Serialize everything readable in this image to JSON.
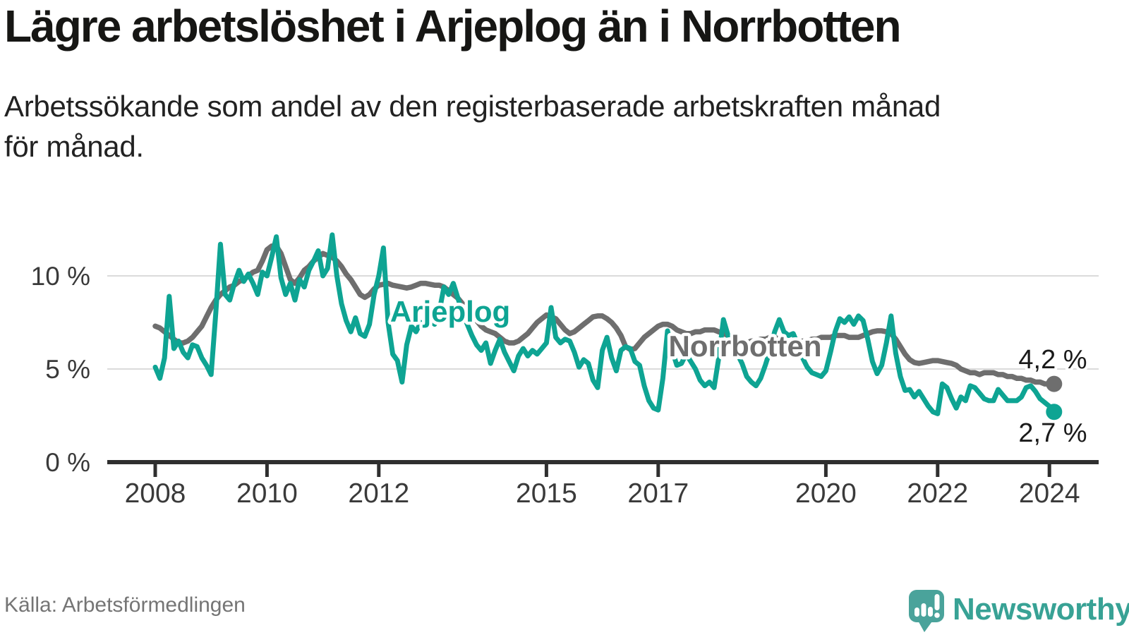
{
  "header": {
    "title": "Lägre arbetslöshet i Arjeplog än i Norrbotten",
    "subtitle_line1": "Arbetssökande som andel av den registerbaserade arbetskraften månad",
    "subtitle_line2": "för månad."
  },
  "chart": {
    "y_ticks": [
      {
        "label": "10 %",
        "value": 10
      },
      {
        "label": "5 %",
        "value": 5
      },
      {
        "label": "0 %",
        "value": 0
      }
    ],
    "x_ticks": [
      {
        "label": "2008",
        "year": 2008
      },
      {
        "label": "2010",
        "year": 2010
      },
      {
        "label": "2012",
        "year": 2012
      },
      {
        "label": "2015",
        "year": 2015
      },
      {
        "label": "2017",
        "year": 2017
      },
      {
        "label": "2020",
        "year": 2020
      },
      {
        "label": "2022",
        "year": 2022
      },
      {
        "label": "2024",
        "year": 2024
      }
    ],
    "series_labels": {
      "arjeplog": "Arjeplog",
      "norrbotten": "Norrbotten"
    },
    "end_labels": {
      "norrbotten": "4,2 %",
      "arjeplog": "2,7 %"
    },
    "colors": {
      "arjeplog": "#0EA493",
      "norrbotten": "#6E6E6E",
      "gridline": "#DBDBDB",
      "axis": "#2F2F2F",
      "tick_text": "#3A3A3A",
      "end_label_text": "#1A1A1A"
    }
  },
  "chart_data": {
    "type": "line",
    "title": "Lägre arbetslöshet i Arjeplog än i Norrbotten",
    "subtitle": "Arbetssökande som andel av den registerbaserade arbetskraften månad för månad.",
    "unit": "%",
    "frequency": "monthly",
    "x_start": "2008-01",
    "x_end": "2024-02",
    "xlim": [
      2007.1,
      2024.9
    ],
    "ylim": [
      0,
      12.7
    ],
    "grid": "horizontal",
    "legend_position": "inline-labels",
    "x_tick_years": [
      2008,
      2010,
      2012,
      2015,
      2017,
      2020,
      2022,
      2024
    ],
    "y_tick_values": [
      0,
      5,
      10
    ],
    "series": [
      {
        "name": "Norrbotten",
        "color": "#6E6E6E",
        "last_value_label": "4,2 %",
        "values": [
          7.3,
          7.2,
          7.0,
          6.8,
          6.6,
          6.4,
          6.4,
          6.5,
          6.7,
          7.0,
          7.3,
          7.8,
          8.3,
          8.7,
          9.0,
          9.2,
          9.4,
          9.5,
          9.7,
          9.8,
          10.0,
          10.2,
          10.3,
          10.8,
          11.4,
          11.6,
          11.6,
          11.2,
          10.5,
          9.8,
          9.6,
          9.9,
          10.3,
          10.5,
          10.8,
          11.0,
          11.2,
          11.1,
          11.0,
          10.8,
          10.5,
          10.1,
          9.8,
          9.4,
          9.0,
          8.85,
          9.0,
          9.3,
          9.5,
          9.55,
          9.6,
          9.5,
          9.45,
          9.4,
          9.35,
          9.4,
          9.5,
          9.6,
          9.6,
          9.55,
          9.5,
          9.5,
          9.4,
          9.2,
          9.0,
          8.8,
          8.5,
          8.2,
          7.9,
          7.6,
          7.3,
          7.1,
          7.0,
          6.9,
          6.7,
          6.5,
          6.4,
          6.4,
          6.5,
          6.7,
          6.9,
          7.2,
          7.5,
          7.7,
          7.9,
          7.8,
          7.7,
          7.4,
          7.1,
          6.9,
          7.0,
          7.2,
          7.4,
          7.6,
          7.8,
          7.85,
          7.85,
          7.7,
          7.5,
          7.2,
          6.8,
          6.2,
          6.05,
          6.1,
          6.4,
          6.7,
          6.9,
          7.1,
          7.3,
          7.4,
          7.4,
          7.3,
          7.1,
          7.0,
          6.9,
          6.9,
          7.0,
          7.0,
          7.1,
          7.1,
          7.1,
          7.0,
          6.9,
          6.8,
          6.6,
          6.5,
          6.4,
          6.4,
          6.5,
          6.5,
          6.6,
          6.6,
          6.7,
          6.7,
          6.6,
          6.5,
          6.4,
          6.4,
          6.4,
          6.5,
          6.5,
          6.6,
          6.6,
          6.7,
          6.7,
          6.7,
          6.8,
          6.8,
          6.8,
          6.7,
          6.7,
          6.7,
          6.8,
          6.9,
          7.0,
          7.05,
          7.05,
          7.0,
          6.9,
          6.6,
          6.2,
          5.8,
          5.5,
          5.35,
          5.3,
          5.35,
          5.4,
          5.45,
          5.45,
          5.4,
          5.35,
          5.3,
          5.2,
          5.0,
          4.9,
          4.8,
          4.8,
          4.7,
          4.8,
          4.8,
          4.8,
          4.7,
          4.7,
          4.6,
          4.6,
          4.5,
          4.5,
          4.4,
          4.4,
          4.3,
          4.3,
          4.2,
          4.2,
          4.2
        ]
      },
      {
        "name": "Arjeplog",
        "color": "#0EA493",
        "last_value_label": "2,7 %",
        "values": [
          5.1,
          4.5,
          5.6,
          8.9,
          6.1,
          6.5,
          5.9,
          5.6,
          6.3,
          6.2,
          5.6,
          5.2,
          4.7,
          8.0,
          11.7,
          9.0,
          8.7,
          9.6,
          10.3,
          9.7,
          10.1,
          9.6,
          9.0,
          10.2,
          10.0,
          11.0,
          12.1,
          9.9,
          9.0,
          9.6,
          8.7,
          9.8,
          9.4,
          10.3,
          10.8,
          11.35,
          10.0,
          10.4,
          12.2,
          10.0,
          8.5,
          7.6,
          7.0,
          7.75,
          6.9,
          6.75,
          7.4,
          9.0,
          10.0,
          11.5,
          7.5,
          5.8,
          5.45,
          4.3,
          6.3,
          7.3,
          7.0,
          7.5,
          7.2,
          7.6,
          7.4,
          8.1,
          9.4,
          9.0,
          9.6,
          8.8,
          8.0,
          7.4,
          6.8,
          6.3,
          6.0,
          6.4,
          5.3,
          6.0,
          6.6,
          5.9,
          5.4,
          4.9,
          5.7,
          6.1,
          5.7,
          6.0,
          5.8,
          6.1,
          6.4,
          8.3,
          6.7,
          6.4,
          6.6,
          6.5,
          5.9,
          5.1,
          5.5,
          5.3,
          4.4,
          4.0,
          6.0,
          6.7,
          5.6,
          4.9,
          6.0,
          6.2,
          6.1,
          5.4,
          5.2,
          4.1,
          3.3,
          2.9,
          2.8,
          4.5,
          7.05,
          6.0,
          5.2,
          5.3,
          5.8,
          5.4,
          5.0,
          4.4,
          4.1,
          4.3,
          4.0,
          5.6,
          7.65,
          6.8,
          6.2,
          5.8,
          5.3,
          4.6,
          4.3,
          4.1,
          4.5,
          5.2,
          6.0,
          7.0,
          7.65,
          7.0,
          6.8,
          6.9,
          6.3,
          5.6,
          5.1,
          4.8,
          4.7,
          4.6,
          4.9,
          5.9,
          7.0,
          7.7,
          7.5,
          7.8,
          7.4,
          7.85,
          7.6,
          6.6,
          5.4,
          4.75,
          5.2,
          6.4,
          7.85,
          5.85,
          4.6,
          3.85,
          3.9,
          3.5,
          3.8,
          3.4,
          3.0,
          2.7,
          2.6,
          4.2,
          4.0,
          3.4,
          2.9,
          3.5,
          3.3,
          4.1,
          4.0,
          3.7,
          3.4,
          3.3,
          3.3,
          3.9,
          3.6,
          3.3,
          3.3,
          3.3,
          3.5,
          4.0,
          4.1,
          3.8,
          3.4,
          3.2,
          3.0,
          2.7
        ]
      }
    ]
  },
  "footer": {
    "source": "Källa: Arbetsförmedlingen",
    "brand": "Newsworthy"
  }
}
